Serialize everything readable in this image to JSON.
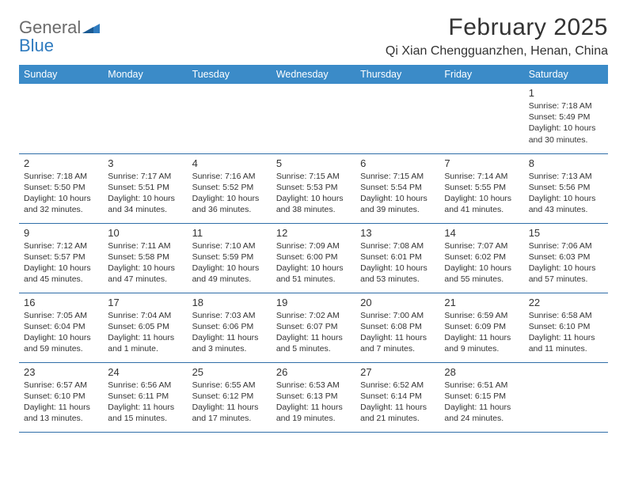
{
  "brand": {
    "word1": "General",
    "word2": "Blue"
  },
  "title": "February 2025",
  "location": "Qi Xian Chengguanzhen, Henan, China",
  "header_bg": "#3b8bc8",
  "header_fg": "#ffffff",
  "rule_color": "#2f6ea8",
  "text_color": "#333333",
  "columns": [
    "Sunday",
    "Monday",
    "Tuesday",
    "Wednesday",
    "Thursday",
    "Friday",
    "Saturday"
  ],
  "weeks": [
    [
      null,
      null,
      null,
      null,
      null,
      null,
      {
        "n": "1",
        "sunrise": "7:18 AM",
        "sunset": "5:49 PM",
        "daylight": "10 hours and 30 minutes."
      }
    ],
    [
      {
        "n": "2",
        "sunrise": "7:18 AM",
        "sunset": "5:50 PM",
        "daylight": "10 hours and 32 minutes."
      },
      {
        "n": "3",
        "sunrise": "7:17 AM",
        "sunset": "5:51 PM",
        "daylight": "10 hours and 34 minutes."
      },
      {
        "n": "4",
        "sunrise": "7:16 AM",
        "sunset": "5:52 PM",
        "daylight": "10 hours and 36 minutes."
      },
      {
        "n": "5",
        "sunrise": "7:15 AM",
        "sunset": "5:53 PM",
        "daylight": "10 hours and 38 minutes."
      },
      {
        "n": "6",
        "sunrise": "7:15 AM",
        "sunset": "5:54 PM",
        "daylight": "10 hours and 39 minutes."
      },
      {
        "n": "7",
        "sunrise": "7:14 AM",
        "sunset": "5:55 PM",
        "daylight": "10 hours and 41 minutes."
      },
      {
        "n": "8",
        "sunrise": "7:13 AM",
        "sunset": "5:56 PM",
        "daylight": "10 hours and 43 minutes."
      }
    ],
    [
      {
        "n": "9",
        "sunrise": "7:12 AM",
        "sunset": "5:57 PM",
        "daylight": "10 hours and 45 minutes."
      },
      {
        "n": "10",
        "sunrise": "7:11 AM",
        "sunset": "5:58 PM",
        "daylight": "10 hours and 47 minutes."
      },
      {
        "n": "11",
        "sunrise": "7:10 AM",
        "sunset": "5:59 PM",
        "daylight": "10 hours and 49 minutes."
      },
      {
        "n": "12",
        "sunrise": "7:09 AM",
        "sunset": "6:00 PM",
        "daylight": "10 hours and 51 minutes."
      },
      {
        "n": "13",
        "sunrise": "7:08 AM",
        "sunset": "6:01 PM",
        "daylight": "10 hours and 53 minutes."
      },
      {
        "n": "14",
        "sunrise": "7:07 AM",
        "sunset": "6:02 PM",
        "daylight": "10 hours and 55 minutes."
      },
      {
        "n": "15",
        "sunrise": "7:06 AM",
        "sunset": "6:03 PM",
        "daylight": "10 hours and 57 minutes."
      }
    ],
    [
      {
        "n": "16",
        "sunrise": "7:05 AM",
        "sunset": "6:04 PM",
        "daylight": "10 hours and 59 minutes."
      },
      {
        "n": "17",
        "sunrise": "7:04 AM",
        "sunset": "6:05 PM",
        "daylight": "11 hours and 1 minute."
      },
      {
        "n": "18",
        "sunrise": "7:03 AM",
        "sunset": "6:06 PM",
        "daylight": "11 hours and 3 minutes."
      },
      {
        "n": "19",
        "sunrise": "7:02 AM",
        "sunset": "6:07 PM",
        "daylight": "11 hours and 5 minutes."
      },
      {
        "n": "20",
        "sunrise": "7:00 AM",
        "sunset": "6:08 PM",
        "daylight": "11 hours and 7 minutes."
      },
      {
        "n": "21",
        "sunrise": "6:59 AM",
        "sunset": "6:09 PM",
        "daylight": "11 hours and 9 minutes."
      },
      {
        "n": "22",
        "sunrise": "6:58 AM",
        "sunset": "6:10 PM",
        "daylight": "11 hours and 11 minutes."
      }
    ],
    [
      {
        "n": "23",
        "sunrise": "6:57 AM",
        "sunset": "6:10 PM",
        "daylight": "11 hours and 13 minutes."
      },
      {
        "n": "24",
        "sunrise": "6:56 AM",
        "sunset": "6:11 PM",
        "daylight": "11 hours and 15 minutes."
      },
      {
        "n": "25",
        "sunrise": "6:55 AM",
        "sunset": "6:12 PM",
        "daylight": "11 hours and 17 minutes."
      },
      {
        "n": "26",
        "sunrise": "6:53 AM",
        "sunset": "6:13 PM",
        "daylight": "11 hours and 19 minutes."
      },
      {
        "n": "27",
        "sunrise": "6:52 AM",
        "sunset": "6:14 PM",
        "daylight": "11 hours and 21 minutes."
      },
      {
        "n": "28",
        "sunrise": "6:51 AM",
        "sunset": "6:15 PM",
        "daylight": "11 hours and 24 minutes."
      },
      null
    ]
  ],
  "labels": {
    "sunrise": "Sunrise:",
    "sunset": "Sunset:",
    "daylight": "Daylight:"
  }
}
